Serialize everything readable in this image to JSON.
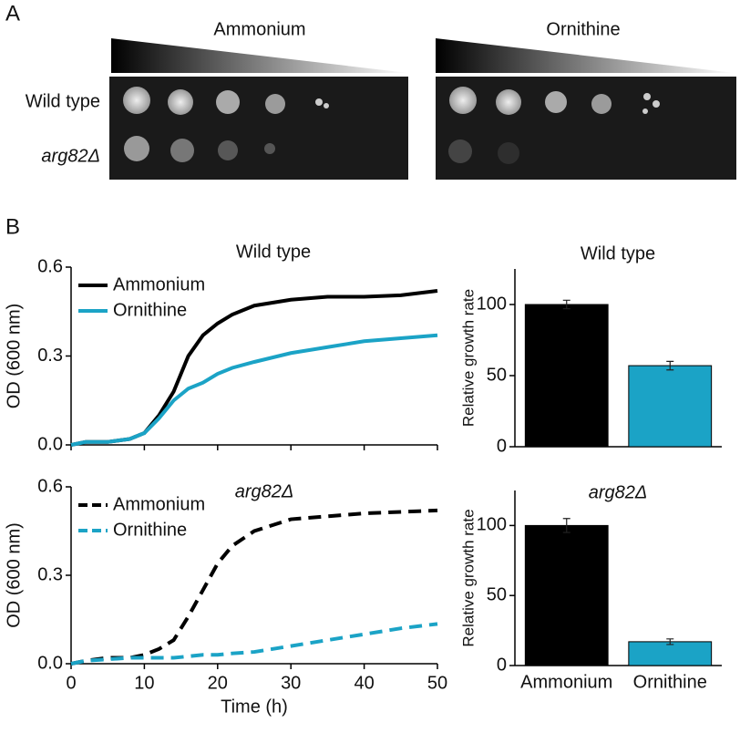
{
  "panel_labels": [
    "A",
    "B"
  ],
  "spot_assay": {
    "conditions": [
      "Ammonium",
      "Ornithine"
    ],
    "strains": [
      "Wild type",
      "arg82Δ"
    ]
  },
  "chart_data": [
    {
      "type": "line",
      "title": "Wild type",
      "ylabel": "OD (600 nm)",
      "show_xtick_labels": false,
      "x": [
        0,
        2,
        5,
        8,
        10,
        12,
        14,
        16,
        18,
        20,
        22,
        25,
        30,
        35,
        40,
        45,
        50
      ],
      "series": [
        {
          "name": "Ammonium",
          "color": "#000000",
          "line_style": "solid",
          "values": [
            0.0,
            0.01,
            0.01,
            0.02,
            0.04,
            0.1,
            0.18,
            0.3,
            0.37,
            0.41,
            0.44,
            0.47,
            0.49,
            0.5,
            0.5,
            0.505,
            0.52
          ]
        },
        {
          "name": "Ornithine",
          "color": "#1ba3c6",
          "line_style": "solid",
          "values": [
            0.0,
            0.01,
            0.01,
            0.02,
            0.04,
            0.09,
            0.15,
            0.19,
            0.21,
            0.24,
            0.26,
            0.28,
            0.31,
            0.33,
            0.35,
            0.36,
            0.37
          ]
        }
      ],
      "xlim": [
        0,
        50
      ],
      "xticks": [
        0,
        10,
        20,
        30,
        40,
        50
      ],
      "ylim": [
        0,
        0.6
      ],
      "yticks": [
        {
          "value": 0,
          "label": "0.0"
        },
        0.3,
        0.6
      ]
    },
    {
      "type": "bar",
      "title": "Wild type",
      "ylabel": "Relative growth rate",
      "categories": [
        null,
        null
      ],
      "values": [
        100,
        57
      ],
      "errors": [
        3,
        3
      ],
      "colors": [
        "#000000",
        "#1ba3c6"
      ],
      "ylim": [
        0,
        125
      ],
      "yticks": [
        0,
        50,
        100
      ]
    },
    {
      "type": "line",
      "title": "arg82Δ",
      "ylabel": "OD (600 nm)",
      "xlabel": "Time (h)",
      "show_xtick_labels": true,
      "x": [
        0,
        2,
        5,
        8,
        10,
        12,
        14,
        16,
        18,
        20,
        22,
        25,
        30,
        35,
        40,
        45,
        50
      ],
      "series": [
        {
          "name": "Ammonium",
          "color": "#000000",
          "line_style": "dashed",
          "values": [
            0.0,
            0.01,
            0.02,
            0.02,
            0.03,
            0.05,
            0.08,
            0.16,
            0.25,
            0.34,
            0.4,
            0.45,
            0.49,
            0.5,
            0.51,
            0.515,
            0.52
          ]
        },
        {
          "name": "Ornithine",
          "color": "#1ba3c6",
          "line_style": "dashed",
          "values": [
            0.0,
            0.01,
            0.015,
            0.02,
            0.02,
            0.02,
            0.02,
            0.025,
            0.03,
            0.03,
            0.035,
            0.04,
            0.06,
            0.08,
            0.1,
            0.12,
            0.135
          ]
        }
      ],
      "xlim": [
        0,
        50
      ],
      "xticks": [
        0,
        10,
        20,
        30,
        40,
        50
      ],
      "ylim": [
        0,
        0.6
      ],
      "yticks": [
        {
          "value": 0,
          "label": "0.0"
        },
        0.3,
        0.6
      ]
    },
    {
      "type": "bar",
      "title": "arg82Δ",
      "ylabel": "Relative growth rate",
      "categories": [
        "Ammonium",
        "Ornithine"
      ],
      "values": [
        100,
        17
      ],
      "errors": [
        5,
        2
      ],
      "colors": [
        "#000000",
        "#1ba3c6"
      ],
      "ylim": [
        0,
        125
      ],
      "yticks": [
        0,
        50,
        100
      ]
    }
  ]
}
